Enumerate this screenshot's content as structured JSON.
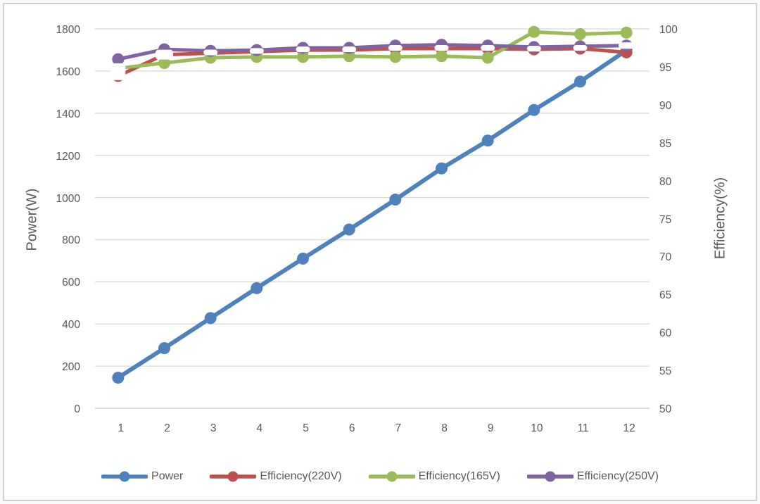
{
  "chart_data": {
    "type": "line",
    "title": "",
    "xlabel": "",
    "ylabel_left": "Power(W)",
    "ylabel_right": "Efficiency(%)",
    "categories": [
      "1",
      "2",
      "3",
      "4",
      "5",
      "6",
      "7",
      "8",
      "9",
      "10",
      "11",
      "12"
    ],
    "axis_left": {
      "min": 0,
      "max": 1800,
      "step": 200,
      "ticks": [
        "1800",
        "1600",
        "1400",
        "1200",
        "1000",
        "800",
        "600",
        "400",
        "200",
        "0"
      ]
    },
    "axis_right": {
      "min": 50,
      "max": 100,
      "step": 5,
      "ticks": [
        "100",
        "95",
        "90",
        "85",
        "80",
        "75",
        "70",
        "65",
        "60",
        "55",
        "50"
      ]
    },
    "grid": true,
    "legend_position": "bottom",
    "series": [
      {
        "name": "Power",
        "axis": "left",
        "color": "#4F81BD",
        "marker": "circle",
        "values": [
          145,
          285,
          428,
          570,
          710,
          848,
          990,
          1138,
          1270,
          1415,
          1550,
          1698
        ]
      },
      {
        "name": "Efficiency(220V)",
        "axis": "right",
        "color": "#C0504D",
        "marker": "circle-white-dash",
        "values": [
          93.8,
          96.6,
          96.8,
          97.0,
          97.2,
          97.2,
          97.4,
          97.4,
          97.4,
          97.3,
          97.4,
          96.9
        ]
      },
      {
        "name": "Efficiency(165V)",
        "axis": "right",
        "color": "#9BBB59",
        "marker": "circle",
        "values": [
          94.8,
          95.5,
          96.2,
          96.3,
          96.3,
          96.4,
          96.3,
          96.4,
          96.2,
          99.6,
          99.3,
          99.5
        ]
      },
      {
        "name": "Efficiency(250V)",
        "axis": "right",
        "color": "#8064A2",
        "marker": "circle",
        "values": [
          96.0,
          97.3,
          97.1,
          97.2,
          97.5,
          97.5,
          97.8,
          97.9,
          97.8,
          97.6,
          97.7,
          97.8
        ]
      }
    ]
  },
  "colors": {
    "text": "#595959",
    "gridline": "#D9D9D9",
    "gridline_bottom": "#C6C6C6",
    "frame_border": "#D2D2D2",
    "background": "#FFFFFF"
  }
}
